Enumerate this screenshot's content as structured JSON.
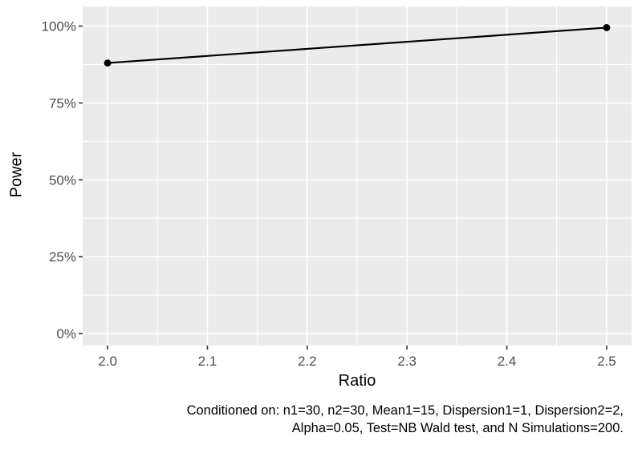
{
  "chart_data": {
    "type": "line",
    "series": [
      {
        "name": "Power",
        "x": [
          2.0,
          2.5
        ],
        "y": [
          88.0,
          99.5
        ]
      }
    ],
    "title": "",
    "xlabel": "Ratio",
    "ylabel": "Power",
    "x_ticks": [
      2.0,
      2.1,
      2.2,
      2.3,
      2.4,
      2.5
    ],
    "x_tick_labels": [
      "2.0",
      "2.1",
      "2.2",
      "2.3",
      "2.4",
      "2.5"
    ],
    "y_ticks": [
      0,
      25,
      50,
      75,
      100
    ],
    "y_tick_labels": [
      "0%",
      "25%",
      "50%",
      "75%",
      "100%"
    ],
    "x_range": [
      1.975,
      2.525
    ],
    "y_range": [
      -3.9,
      106.4
    ],
    "grid": "major and minor gridlines, white on gray panel",
    "legend_position": "none",
    "caption": {
      "line1": "Conditioned on: n1=30, n2=30, Mean1=15, Dispersion1=1, Dispersion2=2,",
      "line2": "Alpha=0.05, Test=NB Wald test, and N Simulations=200.",
      "align": "right"
    },
    "colors": {
      "panel_bg": "#EBEBEB",
      "grid": "#FFFFFF",
      "line": "#000000",
      "point": "#000000",
      "tick_label": "#4D4D4D",
      "tick_mark": "#333333",
      "axis_title": "#000000",
      "caption_text": "#000000",
      "page_bg": "#FFFFFF"
    }
  }
}
